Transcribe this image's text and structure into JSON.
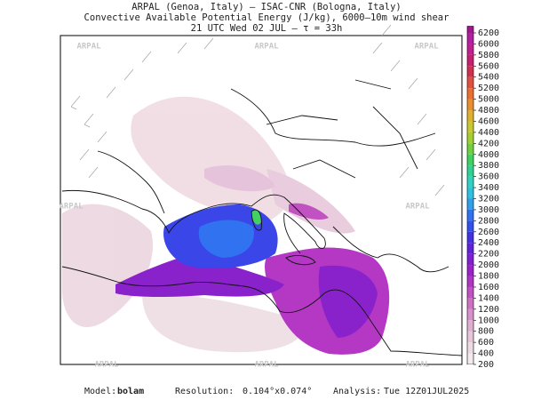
{
  "header": {
    "line1": "ARPAL (Genoa, Italy)  –  ISAC-CNR (Bologna, Italy)",
    "line2": "Convective Available Potential Energy (J/kg), 6000–10m wind shear",
    "line3": "21 UTC Wed 02 JUL  –  τ = 33h"
  },
  "watermarks": [
    "ARPAL",
    "ARPAL",
    "ARPAL",
    "ARPAL",
    "ARPAL",
    "ARPAL",
    "ARPAL",
    "ARPAL"
  ],
  "colorbar": {
    "ticks": [
      200,
      400,
      600,
      800,
      1000,
      1200,
      1400,
      1600,
      1800,
      2000,
      2200,
      2400,
      2600,
      2800,
      3000,
      3200,
      3400,
      3600,
      3800,
      4000,
      4200,
      4400,
      4600,
      4800,
      5000,
      5200,
      5400,
      5600,
      5800,
      6000,
      6200
    ],
    "colors": [
      "#f3eaed",
      "#ecdbe2",
      "#e6c6d8",
      "#dfaed0",
      "#d892ca",
      "#cd72c3",
      "#c152c2",
      "#b135c4",
      "#9b22c9",
      "#8020d0",
      "#6222d8",
      "#4530e2",
      "#3350ee",
      "#3072f0",
      "#30a0e8",
      "#30c0e0",
      "#30d2c2",
      "#30d292",
      "#42d060",
      "#72d040",
      "#a2d030",
      "#c8c830",
      "#e0b030",
      "#e89030",
      "#e87030",
      "#e05040",
      "#d03050",
      "#c82070",
      "#c02090",
      "#b020a0",
      "#a01890"
    ]
  },
  "footer": {
    "model_label": "Model:",
    "model": "bolam",
    "resolution_label": "Resolution:",
    "resolution": "0.104°x0.074°",
    "analysis_label": "Analysis:",
    "analysis": "Tue 12Z01JUL2025"
  }
}
